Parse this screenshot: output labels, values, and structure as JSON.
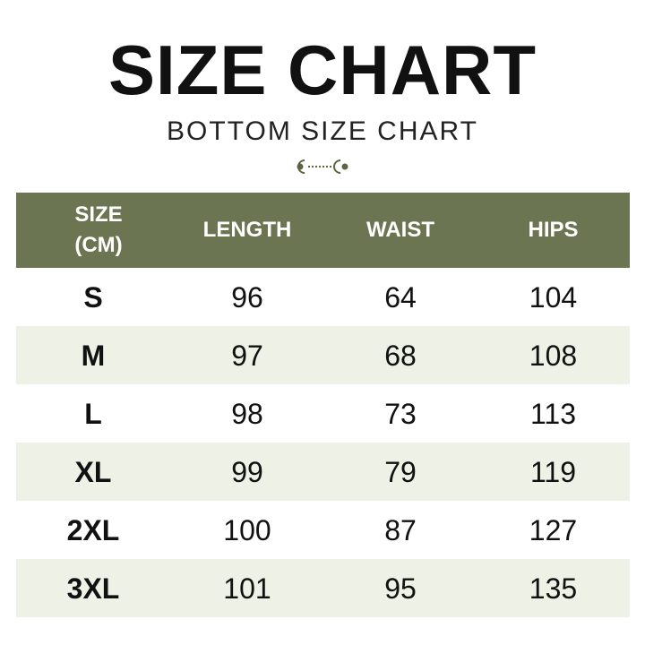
{
  "title": "SIZE CHART",
  "subtitle": "BOTTOM SIZE CHART",
  "colors": {
    "header": "#6b7551",
    "alt_row": "#eef1e5",
    "ornament": "#5b6640"
  },
  "table": {
    "headers": [
      "SIZE (CM)",
      "LENGTH",
      "WAIST",
      "HIPS"
    ],
    "rows": [
      [
        "S",
        "96",
        "64",
        "104"
      ],
      [
        "M",
        "97",
        "68",
        "108"
      ],
      [
        "L",
        "98",
        "73",
        "113"
      ],
      [
        "XL",
        "99",
        "79",
        "119"
      ],
      [
        "2XL",
        "100",
        "87",
        "127"
      ],
      [
        "3XL",
        "101",
        "95",
        "135"
      ]
    ]
  }
}
